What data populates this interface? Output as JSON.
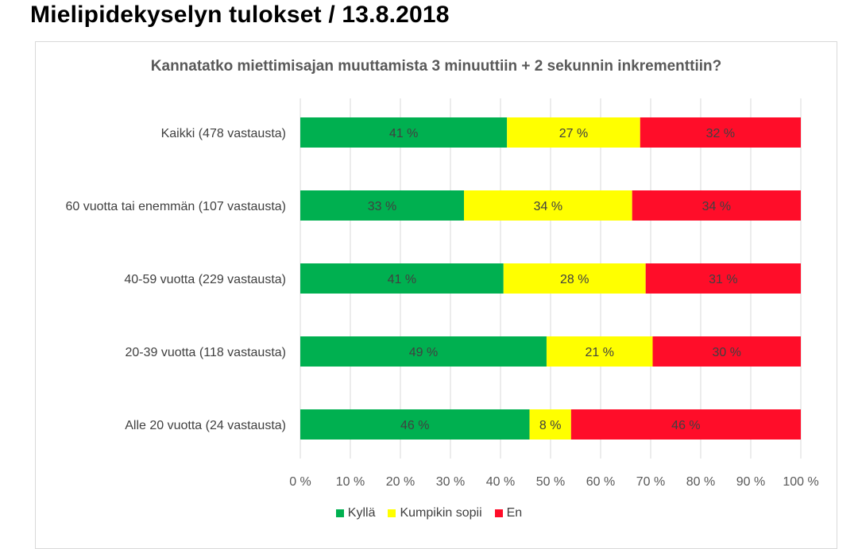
{
  "page": {
    "title": "Mielipidekyselyn tulokset / 13.8.2018"
  },
  "chart_data": {
    "type": "bar",
    "orientation": "horizontal",
    "stacked": "percent",
    "title": "Kannatatko miettimisajan muuttamista 3 minuuttiin + 2 sekunnin inkrementtiin?",
    "xlabel": "",
    "ylabel": "",
    "categories": [
      "Kaikki (478 vastausta)",
      "60 vuotta tai enemmän (107 vastausta)",
      "40-59 vuotta (229 vastausta)",
      "20-39 vuotta (118 vastausta)",
      "Alle 20 vuotta (24 vastausta)"
    ],
    "series": [
      {
        "name": "Kyllä",
        "color": "#00b050",
        "values": [
          41.3,
          32.7,
          40.6,
          49.2,
          45.8
        ],
        "labels": [
          "41 %",
          "33 %",
          "41 %",
          "49 %",
          "46 %"
        ]
      },
      {
        "name": "Kumpikin sopii",
        "color": "#ffff00",
        "values": [
          26.6,
          33.6,
          28.4,
          21.2,
          8.3
        ],
        "labels": [
          "27 %",
          "34 %",
          "28 %",
          "21 %",
          "8 %"
        ]
      },
      {
        "name": "En",
        "color": "#ff0d29",
        "values": [
          32.1,
          33.7,
          31.0,
          29.6,
          45.9
        ],
        "labels": [
          "32 %",
          "34 %",
          "31 %",
          "30 %",
          "46 %"
        ]
      }
    ],
    "xlim": [
      0,
      100
    ],
    "xticks": [
      "0 %",
      "10 %",
      "20 %",
      "30 %",
      "40 %",
      "50 %",
      "60 %",
      "70 %",
      "80 %",
      "90 %",
      "100 %"
    ],
    "grid": "vertical",
    "legend": "bottom"
  }
}
